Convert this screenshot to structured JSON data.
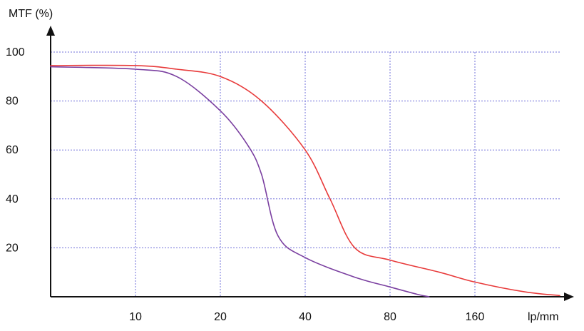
{
  "chart_data": {
    "type": "line",
    "ylabel": "MTF (%)",
    "xlabel": "lp/mm",
    "x_ticks": [
      "10",
      "20",
      "40",
      "80",
      "160"
    ],
    "y_ticks": [
      "100",
      "80",
      "60",
      "40",
      "20"
    ],
    "x_scale": "log2",
    "x_tick_values": [
      10,
      20,
      40,
      80,
      160
    ],
    "y_tick_values": [
      100,
      80,
      60,
      40,
      20
    ],
    "xlim": [
      5,
      320
    ],
    "ylim": [
      0,
      100
    ],
    "grid": true,
    "series": [
      {
        "color": "#e83a3a",
        "x": [
          5,
          10,
          14,
          20,
          28,
          40,
          49,
          60,
          80,
          120,
          160,
          240,
          320
        ],
        "y": [
          94.5,
          94.5,
          93,
          90,
          80,
          60,
          40,
          20,
          15,
          10,
          6,
          2,
          0.5
        ]
      },
      {
        "color": "#7a3fa0",
        "x": [
          5,
          10,
          14,
          20,
          25,
          28,
          32,
          40,
          60,
          80,
          100,
          110
        ],
        "y": [
          94,
          93,
          90,
          76,
          62,
          50,
          25,
          16,
          8,
          4,
          1,
          0
        ]
      }
    ],
    "colors": {
      "grid": "#6f6fd8",
      "axis": "#111111"
    }
  }
}
